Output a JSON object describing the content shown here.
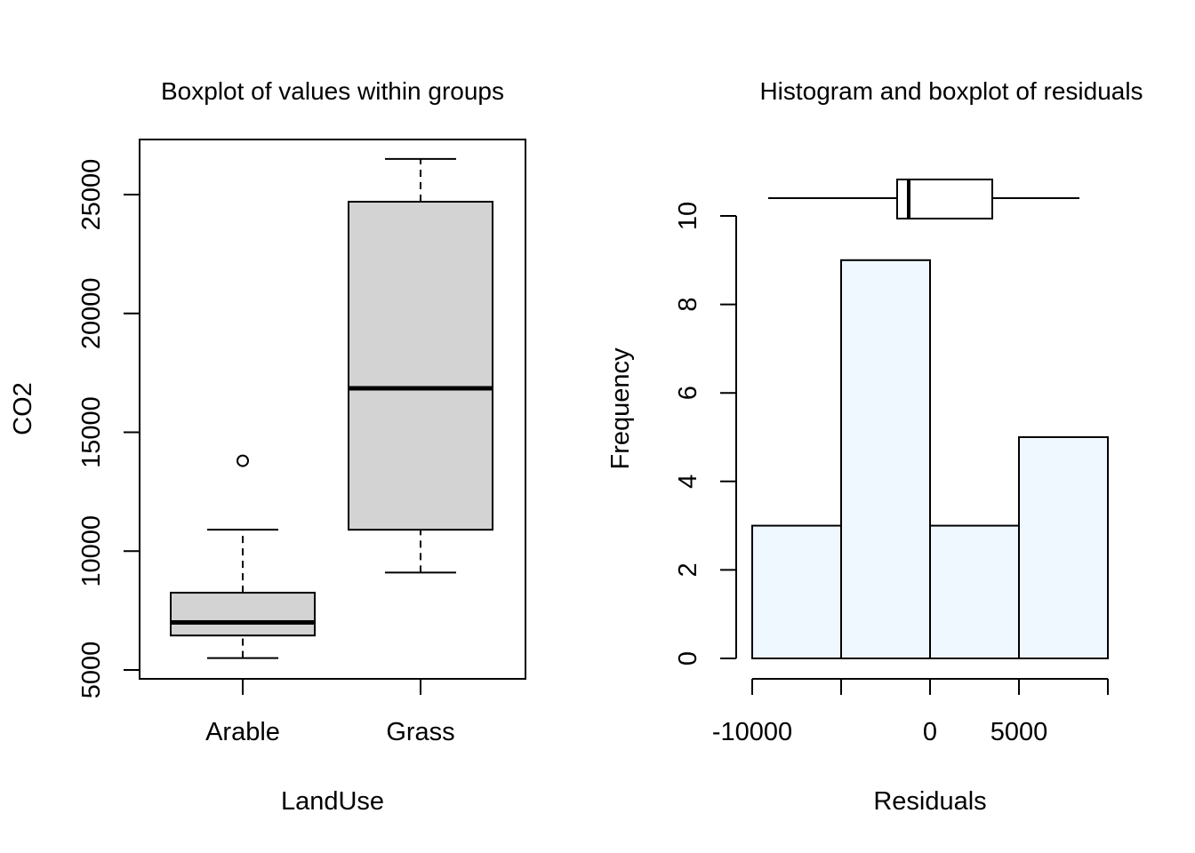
{
  "chart_data": [
    {
      "type": "boxplot",
      "title": "Boxplot of values within groups",
      "xlabel": "LandUse",
      "ylabel": "CO2",
      "ylim": [
        5000,
        27000
      ],
      "yticks": [
        5000,
        10000,
        15000,
        20000,
        25000
      ],
      "ytick_labels": [
        "5000",
        "10000",
        "15000",
        "20000",
        "25000"
      ],
      "grid": false,
      "box_color": "#d3d3d3",
      "groups": [
        {
          "name": "Arable",
          "whisker_low": 5500,
          "q1": 6450,
          "median": 7000,
          "q3": 8250,
          "whisker_high": 10900,
          "outliers": [
            13800
          ]
        },
        {
          "name": "Grass",
          "whisker_low": 9100,
          "q1": 10900,
          "median": 16850,
          "q3": 24700,
          "whisker_high": 26500,
          "outliers": []
        }
      ]
    },
    {
      "type": "histogram",
      "title": "Histogram and boxplot of residuals",
      "xlabel": "Residuals",
      "ylabel": "Frequency",
      "bar_color": "#f0f8ff",
      "bin_edges": [
        -10000,
        -5000,
        0,
        5000,
        10000
      ],
      "frequencies": [
        3,
        9,
        3,
        5
      ],
      "xticks": [
        -10000,
        -5000,
        0,
        5000,
        10000
      ],
      "xtick_labels": [
        "-10000",
        "",
        "0",
        "5000",
        ""
      ],
      "yticks": [
        0,
        2,
        4,
        6,
        8,
        10
      ],
      "ytick_labels": [
        "0",
        "2",
        "4",
        "6",
        "8",
        "10"
      ],
      "ylim": [
        0,
        10
      ],
      "grid": false,
      "residual_boxplot": {
        "whisker_low": -9100,
        "q1": -1850,
        "median": -1200,
        "q3": 3500,
        "whisker_high": 8400
      }
    }
  ]
}
